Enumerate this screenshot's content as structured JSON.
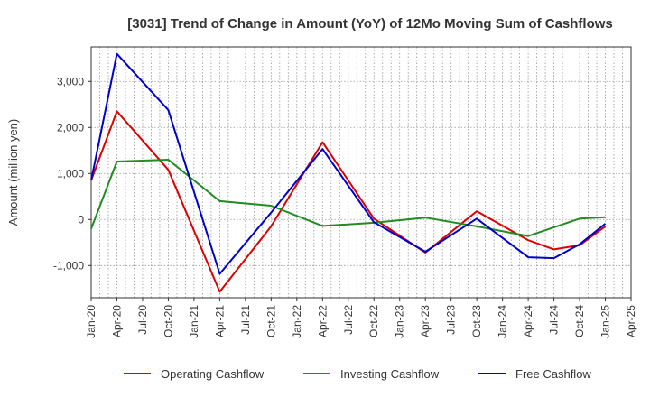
{
  "chart_data": {
    "type": "line",
    "title": "[3031]  Trend of Change in Amount (YoY) of 12Mo Moving Sum of Cashflows",
    "xlabel": "",
    "ylabel": "Amount (million yen)",
    "ylim": [
      -1700,
      3750
    ],
    "yticks": [
      -1000,
      0,
      1000,
      2000,
      3000
    ],
    "ytick_labels": [
      "-1,000",
      "0",
      "1,000",
      "2,000",
      "3,000"
    ],
    "x_tick_labels": [
      "Jan-20",
      "Apr-20",
      "Jul-20",
      "Oct-20",
      "Jan-21",
      "Apr-21",
      "Jul-21",
      "Oct-21",
      "Jan-22",
      "Apr-22",
      "Jul-22",
      "Oct-22",
      "Jan-23",
      "Apr-23",
      "Jul-23",
      "Oct-23",
      "Jan-24",
      "Apr-24",
      "Jul-24",
      "Oct-24",
      "Jan-25",
      "Apr-25"
    ],
    "grid": true,
    "legend_position": "bottom",
    "series": [
      {
        "name": "Operating Cashflow",
        "color": "#dd0000",
        "x": [
          "Jan-20",
          "Apr-20",
          "Oct-20",
          "Apr-21",
          "Oct-21",
          "Apr-22",
          "Oct-22",
          "Apr-23",
          "Oct-23",
          "Apr-24",
          "Jul-24",
          "Oct-24",
          "Jan-25"
        ],
        "values": [
          850,
          2350,
          1080,
          -1570,
          -150,
          1680,
          20,
          -720,
          180,
          -450,
          -650,
          -560,
          -150
        ]
      },
      {
        "name": "Investing Cashflow",
        "color": "#228b22",
        "x": [
          "Jan-20",
          "Apr-20",
          "Oct-20",
          "Apr-21",
          "Oct-21",
          "Apr-22",
          "Oct-22",
          "Apr-23",
          "Oct-23",
          "Apr-24",
          "Oct-24",
          "Jan-25"
        ],
        "values": [
          -200,
          1260,
          1300,
          400,
          300,
          -140,
          -70,
          40,
          -150,
          -360,
          20,
          50
        ]
      },
      {
        "name": "Free Cashflow",
        "color": "#0000cc",
        "x": [
          "Jan-20",
          "Apr-20",
          "Oct-20",
          "Apr-21",
          "Oct-21",
          "Apr-22",
          "Oct-22",
          "Apr-23",
          "Oct-23",
          "Apr-24",
          "Jul-24",
          "Oct-24",
          "Jan-25"
        ],
        "values": [
          850,
          3600,
          2380,
          -1180,
          150,
          1530,
          -60,
          -700,
          20,
          -820,
          -840,
          -540,
          -90
        ]
      }
    ]
  }
}
